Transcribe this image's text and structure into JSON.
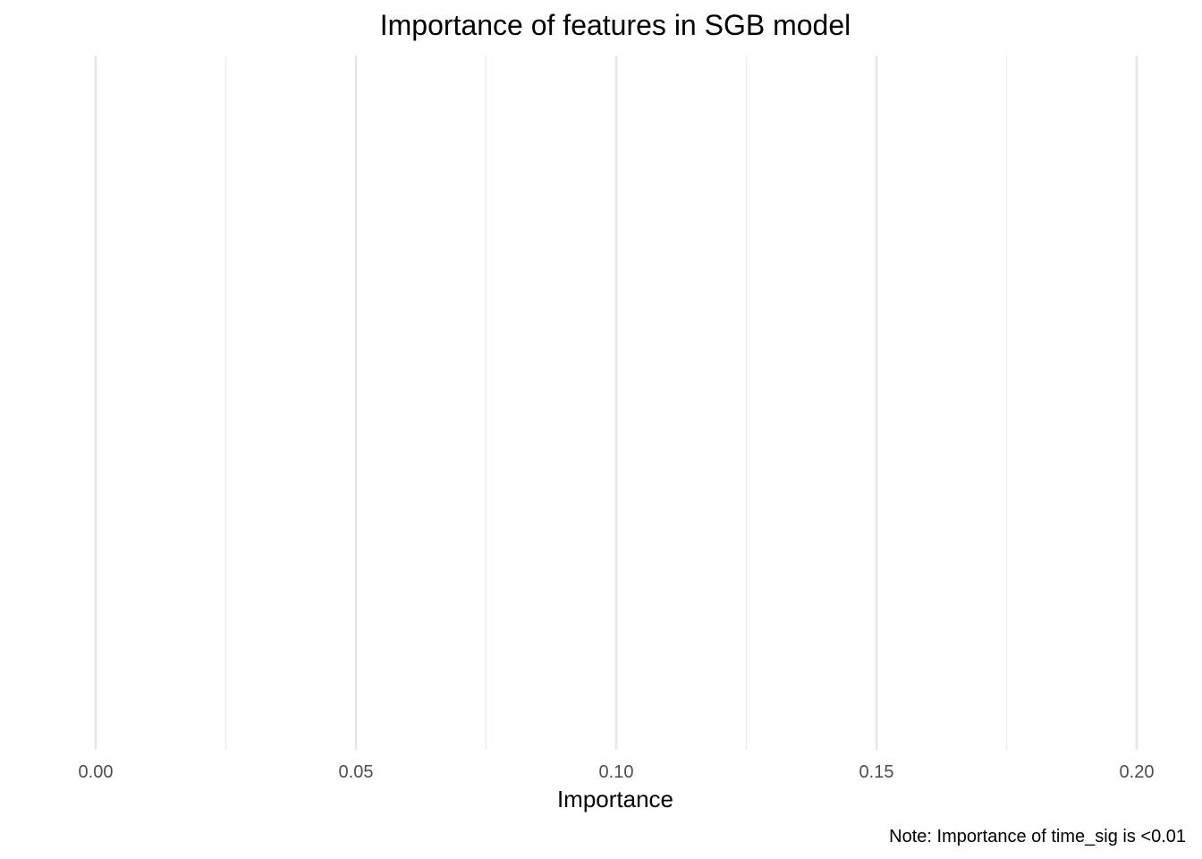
{
  "chart_data": {
    "type": "bar",
    "orientation": "horizontal",
    "title": "Importance of features in SGB model",
    "xlabel": "Importance",
    "ylabel": "",
    "caption": "Note: Importance of time_sig is <0.01",
    "xlim": [
      0.0,
      0.2
    ],
    "x_ticks": [
      0.0,
      0.05,
      0.1,
      0.15,
      0.2
    ],
    "x_tick_labels": [
      "0.00",
      "0.05",
      "0.10",
      "0.15",
      "0.20"
    ],
    "x_minor_ticks": [
      0.025,
      0.075,
      0.125,
      0.175
    ],
    "categories": [],
    "values": [],
    "grid": true,
    "legend": "none"
  }
}
